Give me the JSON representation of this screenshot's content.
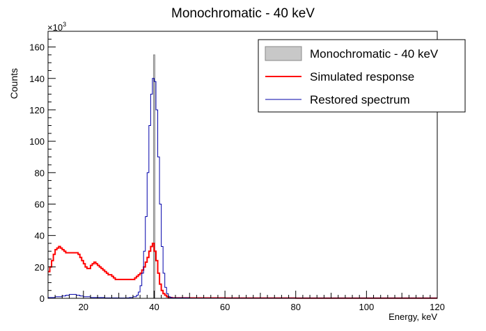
{
  "chart_data": {
    "type": "histogram",
    "title": "Monochromatic - 40 keV",
    "xlabel": "Energy, keV",
    "ylabel": "Counts",
    "y_multiplier_label": "×10",
    "y_multiplier_exponent": "3",
    "xlim": [
      10,
      120
    ],
    "ylim": [
      0,
      170
    ],
    "x_ticks": [
      20,
      40,
      60,
      80,
      100,
      120
    ],
    "y_ticks": [
      0,
      20,
      40,
      60,
      80,
      100,
      120,
      140,
      160
    ],
    "grid": false,
    "legend_position": "top-right",
    "series": [
      {
        "name": "Monochromatic - 40 keV",
        "style": "filled-bar",
        "color": "#888888",
        "fill": "#c8c8c8",
        "points": [
          [
            39.8,
            155
          ],
          [
            40.2,
            0
          ]
        ]
      },
      {
        "name": "Simulated response",
        "style": "step",
        "color": "#ff0000",
        "points": [
          [
            10,
            17
          ],
          [
            10.5,
            20
          ],
          [
            11,
            24
          ],
          [
            11.5,
            28
          ],
          [
            12,
            31
          ],
          [
            12.5,
            32
          ],
          [
            13,
            33
          ],
          [
            13.5,
            32
          ],
          [
            14,
            31
          ],
          [
            14.5,
            30
          ],
          [
            15,
            29
          ],
          [
            16,
            29
          ],
          [
            17,
            29
          ],
          [
            18,
            29
          ],
          [
            18.5,
            28
          ],
          [
            19,
            26
          ],
          [
            19.5,
            24
          ],
          [
            20,
            22
          ],
          [
            20.5,
            20
          ],
          [
            21,
            19
          ],
          [
            21.5,
            19
          ],
          [
            22,
            21
          ],
          [
            22.5,
            22
          ],
          [
            23,
            23
          ],
          [
            23.5,
            22
          ],
          [
            24,
            21
          ],
          [
            24.5,
            20
          ],
          [
            25,
            19
          ],
          [
            25.5,
            18
          ],
          [
            26,
            17
          ],
          [
            26.5,
            16
          ],
          [
            27,
            15
          ],
          [
            27.5,
            15
          ],
          [
            28,
            14
          ],
          [
            28.5,
            13
          ],
          [
            29,
            12
          ],
          [
            30,
            12
          ],
          [
            31,
            12
          ],
          [
            32,
            12
          ],
          [
            33,
            12
          ],
          [
            34,
            12
          ],
          [
            34.5,
            13
          ],
          [
            35,
            14
          ],
          [
            35.5,
            15
          ],
          [
            36,
            16
          ],
          [
            36.5,
            18
          ],
          [
            37,
            20
          ],
          [
            37.5,
            23
          ],
          [
            38,
            26
          ],
          [
            38.5,
            30
          ],
          [
            39,
            33
          ],
          [
            39.5,
            35
          ],
          [
            40,
            30
          ],
          [
            40.5,
            24
          ],
          [
            41,
            16
          ],
          [
            41.5,
            9
          ],
          [
            42,
            5
          ],
          [
            42.5,
            3
          ],
          [
            43,
            2
          ],
          [
            43.5,
            1
          ],
          [
            44,
            0.5
          ],
          [
            45,
            0.3
          ],
          [
            50,
            0.2
          ],
          [
            60,
            0.15
          ],
          [
            80,
            0.1
          ],
          [
            100,
            0.1
          ],
          [
            120,
            0.1
          ]
        ]
      },
      {
        "name": "Restored spectrum",
        "style": "step",
        "color": "#0000aa",
        "points": [
          [
            10,
            0.5
          ],
          [
            12,
            1
          ],
          [
            14,
            1.5
          ],
          [
            15,
            2
          ],
          [
            16,
            2.5
          ],
          [
            17,
            2.5
          ],
          [
            18,
            2
          ],
          [
            19,
            1.5
          ],
          [
            20,
            1
          ],
          [
            22,
            0.5
          ],
          [
            24,
            0.5
          ],
          [
            26,
            0.3
          ],
          [
            28,
            0.3
          ],
          [
            30,
            0.2
          ],
          [
            32,
            0.3
          ],
          [
            33,
            0.5
          ],
          [
            34,
            1
          ],
          [
            35,
            2
          ],
          [
            35.5,
            4
          ],
          [
            36,
            8
          ],
          [
            36.5,
            16
          ],
          [
            37,
            30
          ],
          [
            37.5,
            52
          ],
          [
            38,
            80
          ],
          [
            38.5,
            110
          ],
          [
            39,
            130
          ],
          [
            39.5,
            140
          ],
          [
            40,
            138
          ],
          [
            40.5,
            120
          ],
          [
            41,
            90
          ],
          [
            41.5,
            60
          ],
          [
            42,
            33
          ],
          [
            42.5,
            16
          ],
          [
            43,
            7
          ],
          [
            43.5,
            3
          ],
          [
            44,
            1
          ],
          [
            44.5,
            0.5
          ],
          [
            45,
            0.3
          ],
          [
            50,
            0.1
          ],
          [
            120,
            0.1
          ]
        ]
      }
    ]
  }
}
